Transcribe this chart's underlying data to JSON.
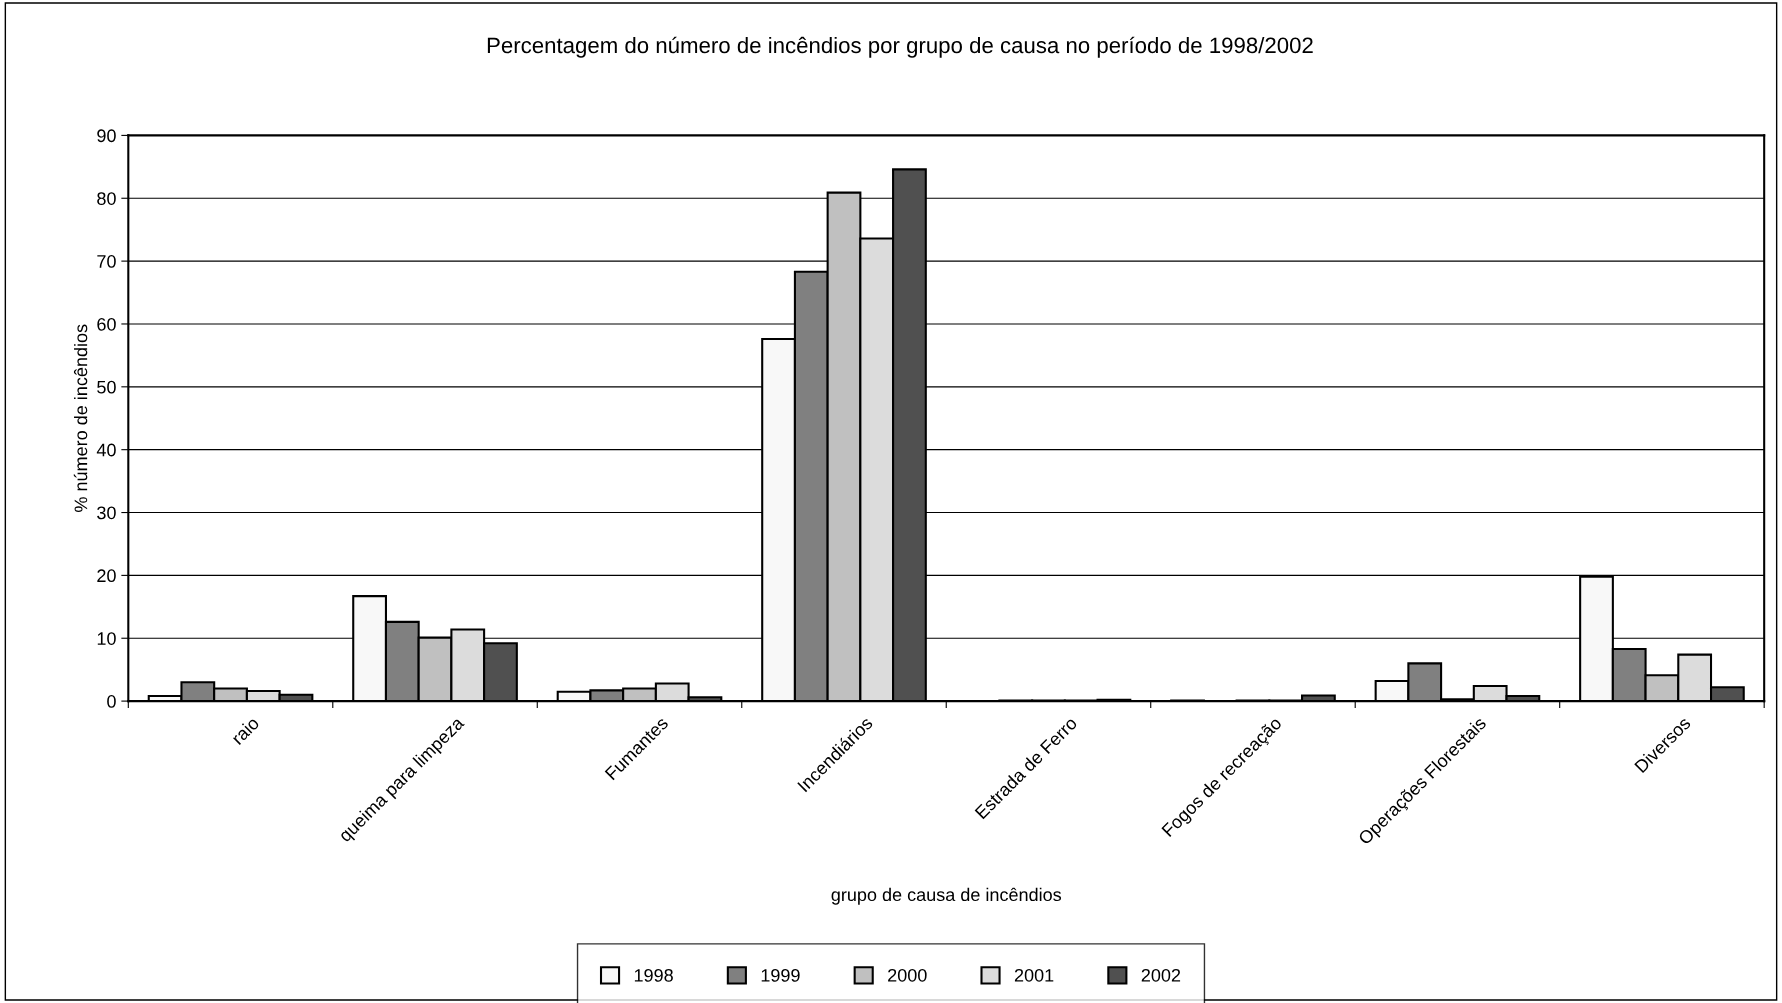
{
  "chart_data": {
    "type": "bar",
    "title": "Percentagem do número de incêndios por grupo de causa no período de 1998/2002",
    "xlabel": "grupo de causa de incêndios",
    "ylabel": "% número de incêndios",
    "categories": [
      "raio",
      "queima para limpeza",
      "Fumantes",
      "Incendiários",
      "Estrada de Ferro",
      "Fogos de recreação",
      "Operações Florestais",
      "Diversos"
    ],
    "series": [
      {
        "name": "1998",
        "color": "#f8f8f8",
        "values": [
          0.8,
          16.7,
          1.5,
          57.6,
          0,
          0.1,
          3.2,
          19.8
        ]
      },
      {
        "name": "1999",
        "color": "#808080",
        "values": [
          3.0,
          12.6,
          1.7,
          68.3,
          0.1,
          0,
          6.0,
          8.3
        ]
      },
      {
        "name": "2000",
        "color": "#c0c0c0",
        "values": [
          2.0,
          10.1,
          2.0,
          80.9,
          0.1,
          0.1,
          0.3,
          4.1
        ]
      },
      {
        "name": "2001",
        "color": "#dcdcdc",
        "values": [
          1.6,
          11.4,
          2.8,
          73.6,
          0.1,
          0.1,
          2.4,
          7.4
        ]
      },
      {
        "name": "2002",
        "color": "#505050",
        "values": [
          1.0,
          9.2,
          0.6,
          84.6,
          0.2,
          0.9,
          0.8,
          2.2
        ]
      }
    ],
    "ylim": [
      0,
      90
    ],
    "yticks": [
      0,
      10,
      20,
      30,
      40,
      50,
      60,
      70,
      80,
      90
    ],
    "grid": "y",
    "legend": "bottom"
  }
}
